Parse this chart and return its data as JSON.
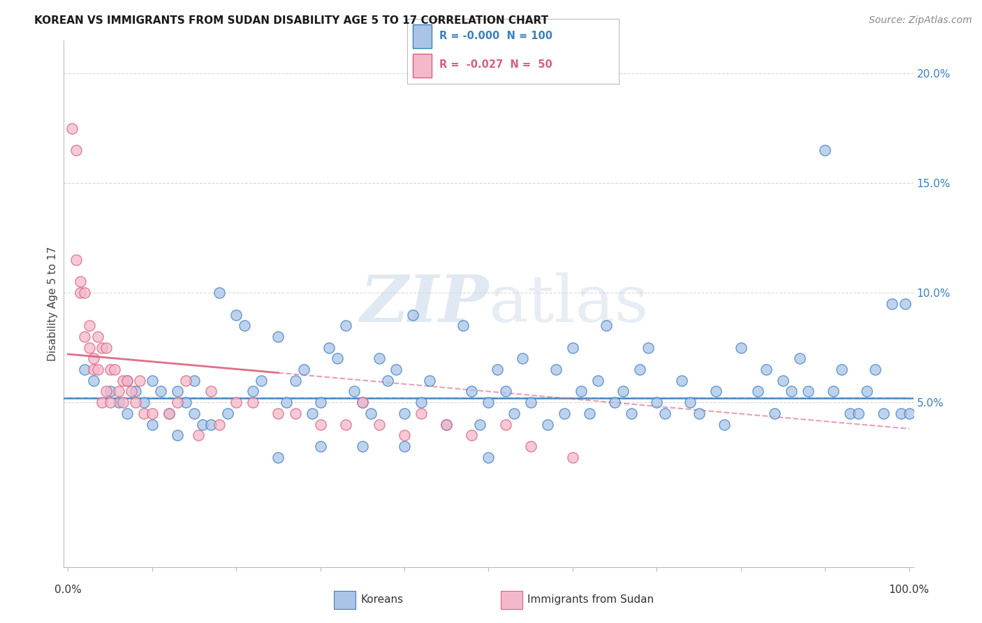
{
  "title": "KOREAN VS IMMIGRANTS FROM SUDAN DISABILITY AGE 5 TO 17 CORRELATION CHART",
  "source": "Source: ZipAtlas.com",
  "ylabel": "Disability Age 5 to 17",
  "watermark_zip": "ZIP",
  "watermark_atlas": "atlas",
  "korean_color": "#aac4e8",
  "sudan_color": "#f4b8cb",
  "trend_korean_color": "#3a7fc1",
  "trend_sudan_color": "#d9607a",
  "hline_color": "#3a7fc1",
  "right_axis_color": "#3a7fc1",
  "ylim_low": -0.025,
  "ylim_high": 0.215,
  "xlim_low": -0.005,
  "xlim_high": 1.005,
  "right_yticks": [
    0.05,
    0.1,
    0.15,
    0.2
  ],
  "right_yticklabels": [
    "5.0%",
    "10.0%",
    "15.0%",
    "20.0%"
  ],
  "background_color": "#ffffff",
  "grid_color": "#d8d8d8",
  "hline_y": 0.052,
  "trend_sudan_x0": 0.0,
  "trend_sudan_y0": 0.072,
  "trend_sudan_x1": 1.0,
  "trend_sudan_y1": 0.038,
  "trend_korean_x0": 0.0,
  "trend_korean_y0": 0.052,
  "trend_korean_x1": 1.0,
  "trend_korean_y1": 0.052,
  "korean_scatter_x": [
    0.02,
    0.03,
    0.05,
    0.06,
    0.07,
    0.07,
    0.08,
    0.09,
    0.1,
    0.1,
    0.11,
    0.12,
    0.13,
    0.13,
    0.14,
    0.15,
    0.15,
    0.16,
    0.17,
    0.18,
    0.19,
    0.2,
    0.21,
    0.22,
    0.23,
    0.25,
    0.26,
    0.27,
    0.28,
    0.29,
    0.3,
    0.31,
    0.32,
    0.33,
    0.34,
    0.35,
    0.36,
    0.37,
    0.38,
    0.39,
    0.4,
    0.41,
    0.42,
    0.43,
    0.45,
    0.47,
    0.48,
    0.49,
    0.5,
    0.51,
    0.52,
    0.53,
    0.54,
    0.55,
    0.57,
    0.58,
    0.59,
    0.6,
    0.61,
    0.62,
    0.63,
    0.64,
    0.65,
    0.66,
    0.67,
    0.68,
    0.69,
    0.7,
    0.71,
    0.73,
    0.74,
    0.75,
    0.77,
    0.78,
    0.8,
    0.82,
    0.83,
    0.84,
    0.85,
    0.86,
    0.87,
    0.88,
    0.9,
    0.91,
    0.92,
    0.93,
    0.94,
    0.95,
    0.96,
    0.97,
    0.98,
    0.99,
    0.995,
    1.0,
    0.35,
    0.4,
    0.5,
    0.3,
    0.25
  ],
  "korean_scatter_y": [
    0.065,
    0.06,
    0.055,
    0.05,
    0.06,
    0.045,
    0.055,
    0.05,
    0.04,
    0.06,
    0.055,
    0.045,
    0.035,
    0.055,
    0.05,
    0.045,
    0.06,
    0.04,
    0.04,
    0.1,
    0.045,
    0.09,
    0.085,
    0.055,
    0.06,
    0.08,
    0.05,
    0.06,
    0.065,
    0.045,
    0.05,
    0.075,
    0.07,
    0.085,
    0.055,
    0.05,
    0.045,
    0.07,
    0.06,
    0.065,
    0.045,
    0.09,
    0.05,
    0.06,
    0.04,
    0.085,
    0.055,
    0.04,
    0.05,
    0.065,
    0.055,
    0.045,
    0.07,
    0.05,
    0.04,
    0.065,
    0.045,
    0.075,
    0.055,
    0.045,
    0.06,
    0.085,
    0.05,
    0.055,
    0.045,
    0.065,
    0.075,
    0.05,
    0.045,
    0.06,
    0.05,
    0.045,
    0.055,
    0.04,
    0.075,
    0.055,
    0.065,
    0.045,
    0.06,
    0.055,
    0.07,
    0.055,
    0.165,
    0.055,
    0.065,
    0.045,
    0.045,
    0.055,
    0.065,
    0.045,
    0.095,
    0.045,
    0.095,
    0.045,
    0.03,
    0.03,
    0.025,
    0.03,
    0.025
  ],
  "sudan_scatter_x": [
    0.005,
    0.01,
    0.01,
    0.015,
    0.015,
    0.02,
    0.02,
    0.025,
    0.025,
    0.03,
    0.03,
    0.035,
    0.035,
    0.04,
    0.04,
    0.045,
    0.045,
    0.05,
    0.05,
    0.055,
    0.06,
    0.065,
    0.065,
    0.07,
    0.075,
    0.08,
    0.085,
    0.09,
    0.1,
    0.12,
    0.13,
    0.14,
    0.155,
    0.17,
    0.18,
    0.2,
    0.22,
    0.25,
    0.27,
    0.3,
    0.33,
    0.35,
    0.37,
    0.4,
    0.42,
    0.45,
    0.48,
    0.52,
    0.55,
    0.6
  ],
  "sudan_scatter_y": [
    0.175,
    0.165,
    0.115,
    0.105,
    0.1,
    0.1,
    0.08,
    0.085,
    0.075,
    0.07,
    0.065,
    0.08,
    0.065,
    0.075,
    0.05,
    0.075,
    0.055,
    0.065,
    0.05,
    0.065,
    0.055,
    0.05,
    0.06,
    0.06,
    0.055,
    0.05,
    0.06,
    0.045,
    0.045,
    0.045,
    0.05,
    0.06,
    0.035,
    0.055,
    0.04,
    0.05,
    0.05,
    0.045,
    0.045,
    0.04,
    0.04,
    0.05,
    0.04,
    0.035,
    0.045,
    0.04,
    0.035,
    0.04,
    0.03,
    0.025
  ],
  "marker_size": 120,
  "marker_linewidth": 1.0,
  "title_fontsize": 11,
  "source_fontsize": 10,
  "tick_fontsize": 11,
  "ylabel_fontsize": 11
}
